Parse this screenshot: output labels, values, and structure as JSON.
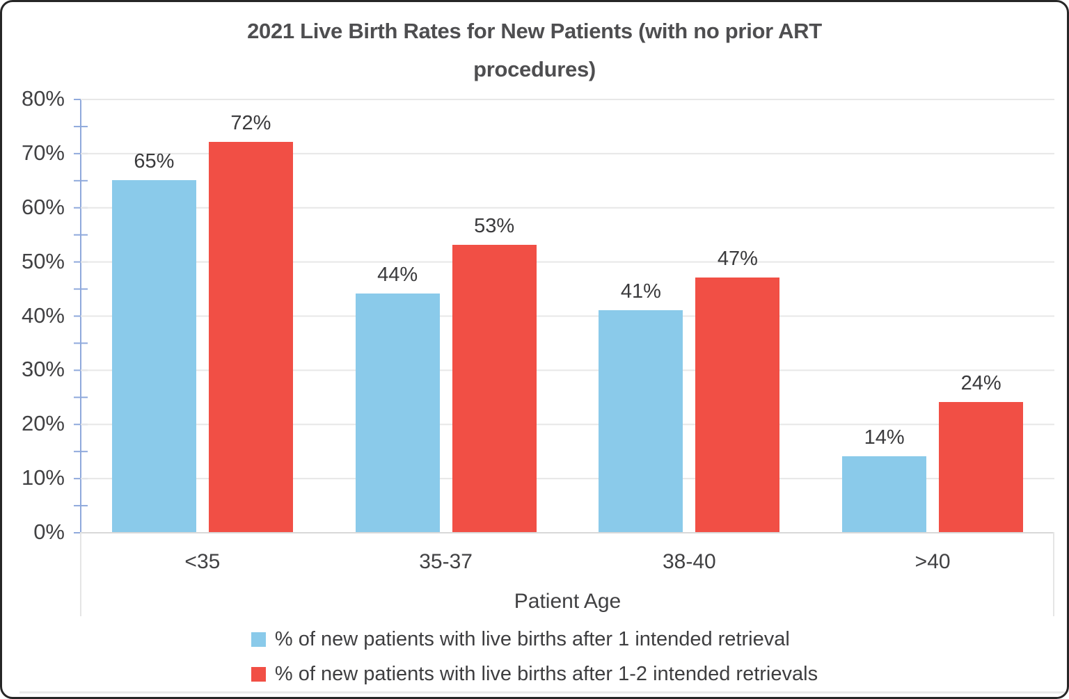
{
  "title_lines": [
    "2021 Live Birth Rates for New Patients (with no prior ART",
    "procedures)"
  ],
  "chart_data": {
    "type": "bar",
    "title": "2021 Live Birth Rates for New Patients (with no prior ART procedures)",
    "xlabel": "Patient Age",
    "ylabel": "",
    "ylim": [
      0,
      80
    ],
    "ytick_labels": [
      "80%",
      "70%",
      "60%",
      "50%",
      "40%",
      "30%",
      "20%",
      "10%",
      "0%"
    ],
    "minor_tick_step": 5,
    "grid": "horizontal-10pct",
    "legend_position": "bottom",
    "categories": [
      "<35",
      "35-37",
      "38-40",
      ">40"
    ],
    "series": [
      {
        "name": "% of new patients with live births after 1 intended retrieval",
        "color": "#8acaea",
        "values": [
          65,
          44,
          41,
          14
        ],
        "labels": [
          "65%",
          "44%",
          "41%",
          "14%"
        ]
      },
      {
        "name": "% of new patients with live births after 1-2 intended retrievals",
        "color": "#f14f45",
        "values": [
          72,
          53,
          47,
          24
        ],
        "labels": [
          "72%",
          "53%",
          "47%",
          "24%"
        ]
      }
    ],
    "colors": {
      "axis_line": "#8fa9dc",
      "gridline": "#e7e7e7",
      "x_baseline": "#d8d8d8",
      "text": "#3e3e40"
    }
  }
}
